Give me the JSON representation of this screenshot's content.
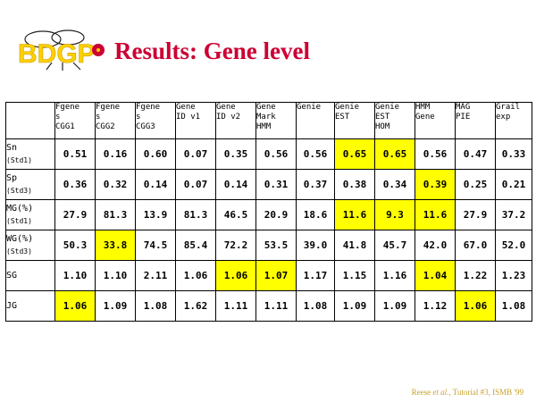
{
  "logo": {
    "text": "BDGP",
    "icon": "fly-logo-icon"
  },
  "title": "Results:  Gene level",
  "columns": [
    "Fgene\ns\nCGG1",
    "Fgene\ns\nCGG2",
    "Fgene\ns\nCGG3",
    "Gene\nID v1",
    "Gene\nID v2",
    "Gene\nMark\nHMM",
    "Genie",
    "Genie\nEST",
    "Genie\nEST\nHOM",
    "HMM\nGene",
    "MAG\nPIE",
    "Grail\nexp"
  ],
  "rows": [
    {
      "label": "Sn",
      "sub": "(Std1)",
      "values": [
        "0.51",
        "0.16",
        "0.60",
        "0.07",
        "0.35",
        "0.56",
        "0.56",
        "0.65",
        "0.65",
        "0.56",
        "0.47",
        "0.33"
      ],
      "highlight": [
        7,
        8
      ]
    },
    {
      "label": "Sp",
      "sub": "(Std3)",
      "values": [
        "0.36",
        "0.32",
        "0.14",
        "0.07",
        "0.14",
        "0.31",
        "0.37",
        "0.38",
        "0.34",
        "0.39",
        "0.25",
        "0.21"
      ],
      "highlight": [
        9
      ]
    },
    {
      "label": "MG(%)",
      "sub": "(Std1)",
      "values": [
        "27.9",
        "81.3",
        "13.9",
        "81.3",
        "46.5",
        "20.9",
        "18.6",
        "11.6",
        "9.3",
        "11.6",
        "27.9",
        "37.2"
      ],
      "highlight": [
        7,
        8,
        9
      ]
    },
    {
      "label": "WG(%)",
      "sub": "(Std3)",
      "values": [
        "50.3",
        "33.8",
        "74.5",
        "85.4",
        "72.2",
        "53.5",
        "39.0",
        "41.8",
        "45.7",
        "42.0",
        "67.0",
        "52.0"
      ],
      "highlight": [
        1
      ]
    },
    {
      "label": "SG",
      "sub": "",
      "values": [
        "1.10",
        "1.10",
        "2.11",
        "1.06",
        "1.06",
        "1.07",
        "1.17",
        "1.15",
        "1.16",
        "1.04",
        "1.22",
        "1.23"
      ],
      "highlight": [
        4,
        5,
        9
      ]
    },
    {
      "label": "JG",
      "sub": "",
      "values": [
        "1.06",
        "1.09",
        "1.08",
        "1.62",
        "1.11",
        "1.11",
        "1.08",
        "1.09",
        "1.09",
        "1.12",
        "1.06",
        "1.08"
      ],
      "highlight": [
        0,
        10
      ]
    }
  ],
  "footer": {
    "author": "Reese ",
    "etal": "et al.",
    "rest": ", Tutorial #3, ISMB '99"
  },
  "colors": {
    "title": "#cc0033",
    "highlight": "#ffff00",
    "footer": "#c8a02a",
    "logo_yellow": "#ffd000",
    "logo_red": "#cc0033"
  }
}
